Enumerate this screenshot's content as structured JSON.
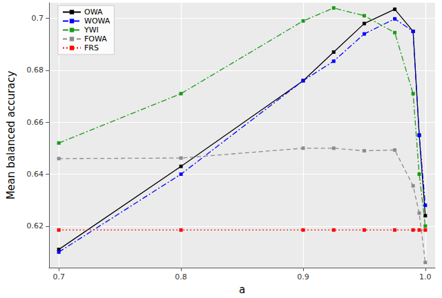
{
  "chart_data": {
    "type": "line",
    "x_label": "a",
    "y_label": "Mean balanced accuracy",
    "x": [
      0.7,
      0.8,
      0.9,
      0.925,
      0.95,
      0.975,
      0.99,
      0.995,
      1.0
    ],
    "series": [
      {
        "name": "OWA",
        "color": "#000000",
        "line_style": "solid",
        "marker": "square",
        "values": [
          0.611,
          0.643,
          0.676,
          0.687,
          0.698,
          0.7035,
          0.695,
          0.655,
          0.624
        ]
      },
      {
        "name": "WOWA",
        "color": "#0000ff",
        "line_style": "dashdot",
        "marker": "square",
        "values": [
          0.61,
          0.64,
          0.676,
          0.6835,
          0.694,
          0.6998,
          0.695,
          0.655,
          0.628
        ]
      },
      {
        "name": "YWI",
        "color": "#1a9a1a",
        "line_style": "dashdot",
        "marker": "square",
        "values": [
          0.652,
          0.671,
          0.699,
          0.704,
          0.701,
          0.6945,
          0.671,
          0.64,
          0.62
        ]
      },
      {
        "name": "FOWA",
        "color": "#8c8c8c",
        "line_style": "dashed",
        "marker": "square",
        "values": [
          0.646,
          0.6462,
          0.65,
          0.65,
          0.649,
          0.6493,
          0.6355,
          0.625,
          0.606
        ]
      },
      {
        "name": "FRS",
        "color": "#ff0000",
        "line_style": "dotted",
        "marker": "square",
        "values": [
          0.6185,
          0.6185,
          0.6185,
          0.6185,
          0.6185,
          0.6185,
          0.6185,
          0.6185,
          0.6185
        ]
      }
    ],
    "xlim": [
      0.692,
      1.008
    ],
    "xticks": [
      0.7,
      0.8,
      0.9,
      {
        "value": 1,
        "label": "1.0"
      }
    ],
    "ylim": [
      0.604,
      0.706
    ],
    "yticks": [
      0.62,
      0.64,
      0.66,
      0.68,
      0.7
    ],
    "grid": true,
    "legend": "upper left"
  }
}
